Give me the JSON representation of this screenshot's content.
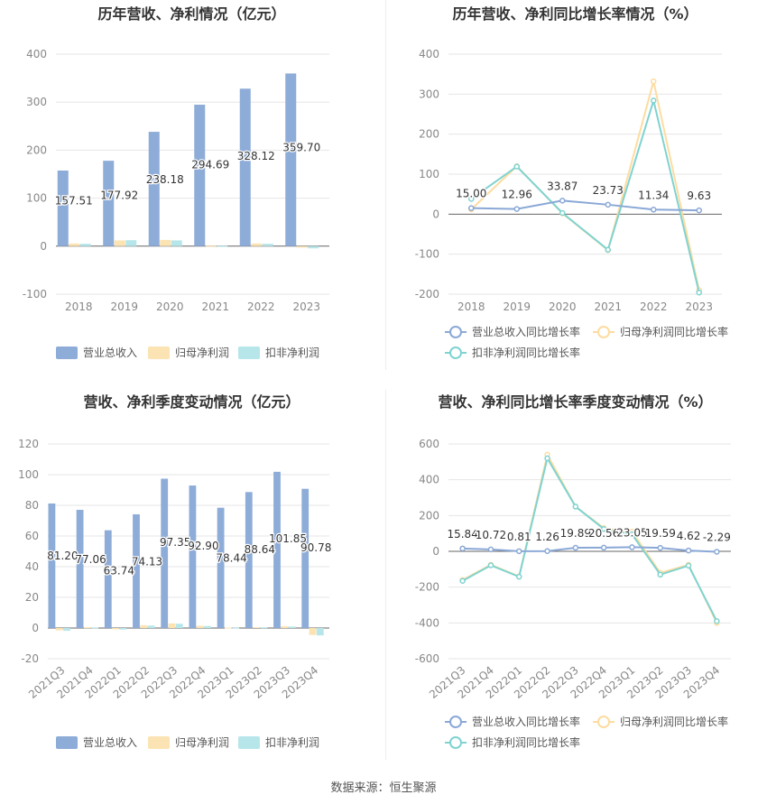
{
  "source_text": "数据来源：恒生聚源",
  "colors": {
    "revenue_bar": "#8eacd8",
    "net_bar": "#fbe3b3",
    "deducted_bar": "#b7e6ea",
    "revenue_line": "#8aa8d6",
    "net_line": "#fddca0",
    "deducted_line": "#7fd3d0",
    "grid": "#e6e6e6",
    "axis_text": "#888888",
    "label_text": "#333333"
  },
  "chart_data": [
    {
      "id": "annual_bar",
      "type": "bar",
      "title": "历年营收、净利情况（亿元）",
      "categories": [
        "2018",
        "2019",
        "2020",
        "2021",
        "2022",
        "2023"
      ],
      "yticks": [
        "400",
        "300",
        "200",
        "100",
        "0",
        "-100"
      ],
      "ylim": [
        -100,
        400
      ],
      "series": [
        {
          "name": "营业总收入",
          "values": [
            157.51,
            177.92,
            238.18,
            294.69,
            328.12,
            359.7
          ],
          "labels": [
            "157.51",
            "177.92",
            "238.18",
            "294.69",
            "328.12",
            "359.70"
          ]
        },
        {
          "name": "归母净利润",
          "values": [
            5.5,
            12.0,
            13.0,
            0.8,
            5.5,
            -3.0
          ]
        },
        {
          "name": "扣非净利润",
          "values": [
            5.0,
            12.5,
            12.0,
            0.5,
            5.0,
            -4.5
          ]
        }
      ],
      "legend_position": "bottom"
    },
    {
      "id": "annual_line",
      "type": "line",
      "title": "历年营收、净利同比增长率情况（%）",
      "categories": [
        "2018",
        "2019",
        "2020",
        "2021",
        "2022",
        "2023"
      ],
      "yticks": [
        "400",
        "300",
        "200",
        "100",
        "0",
        "-100",
        "-200"
      ],
      "ylim": [
        -200,
        400
      ],
      "series": [
        {
          "name": "营业总收入同比增长率",
          "values": [
            15.0,
            12.96,
            33.87,
            23.73,
            11.34,
            9.63
          ],
          "labels": [
            "15.00",
            "12.96",
            "33.87",
            "23.73",
            "11.34",
            "9.63"
          ]
        },
        {
          "name": "归母净利润同比增长率",
          "values": [
            12,
            120,
            2,
            -90,
            332,
            -190
          ]
        },
        {
          "name": "扣非净利润同比增长率",
          "values": [
            38,
            119,
            3,
            -89,
            284,
            -196
          ]
        }
      ],
      "legend_position": "bottom"
    },
    {
      "id": "quarter_bar",
      "type": "bar",
      "title": "营收、净利季度变动情况（亿元）",
      "categories": [
        "2021Q3",
        "2021Q4",
        "2022Q1",
        "2022Q2",
        "2022Q3",
        "2022Q4",
        "2023Q1",
        "2023Q2",
        "2023Q3",
        "2023Q4"
      ],
      "yticks": [
        "120",
        "100",
        "80",
        "60",
        "40",
        "20",
        "0",
        "-20"
      ],
      "ylim": [
        -20,
        120
      ],
      "series": [
        {
          "name": "营业总收入",
          "values": [
            81.2,
            77.06,
            63.74,
            74.13,
            97.35,
            92.9,
            78.44,
            88.64,
            101.85,
            90.78
          ],
          "labels": [
            "81.20",
            "77.06",
            "63.74",
            "74.13",
            "97.35",
            "92.90",
            "78.44",
            "88.64",
            "101.85",
            "90.78"
          ]
        },
        {
          "name": "归母净利润",
          "values": [
            -1.5,
            0.5,
            -0.8,
            1.8,
            3.0,
            1.5,
            0.3,
            0.6,
            1.2,
            -4.5
          ]
        },
        {
          "name": "扣非净利润",
          "values": [
            -1.8,
            0.4,
            -1.0,
            1.6,
            2.8,
            1.3,
            0.2,
            0.5,
            1.0,
            -4.8
          ]
        }
      ],
      "legend_position": "bottom"
    },
    {
      "id": "quarter_line",
      "type": "line",
      "title": "营收、净利同比增长率季度变动情况（%）",
      "categories": [
        "2021Q3",
        "2021Q4",
        "2022Q1",
        "2022Q2",
        "2022Q3",
        "2022Q4",
        "2023Q1",
        "2023Q2",
        "2023Q3",
        "2023Q4"
      ],
      "yticks": [
        "600",
        "400",
        "200",
        "0",
        "-200",
        "-400",
        "-600"
      ],
      "ylim": [
        -600,
        600
      ],
      "series": [
        {
          "name": "营业总收入同比增长率",
          "values": [
            15.84,
            10.72,
            0.81,
            1.26,
            19.89,
            20.56,
            23.05,
            19.59,
            4.62,
            -2.29
          ],
          "labels": [
            "15.84",
            "10.72",
            "0.81",
            "1.26",
            "19.89",
            "20.56",
            "23.05",
            "19.59",
            "4.62",
            "-2.29"
          ]
        },
        {
          "name": "归母净利润同比增长率",
          "values": [
            -160,
            -75,
            -140,
            540,
            250,
            130,
            110,
            -120,
            -75,
            -400
          ]
        },
        {
          "name": "扣非净利润同比增长率",
          "values": [
            -165,
            -78,
            -142,
            520,
            250,
            125,
            95,
            -130,
            -80,
            -390
          ]
        }
      ],
      "legend_position": "bottom"
    }
  ]
}
